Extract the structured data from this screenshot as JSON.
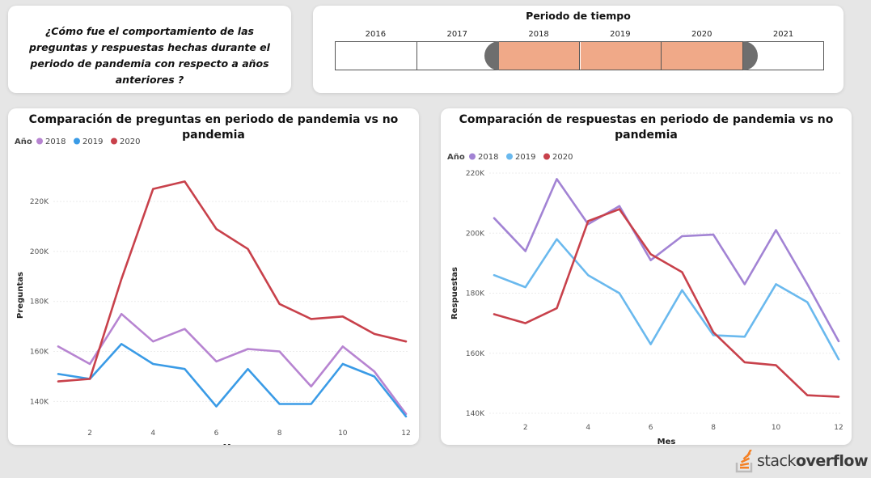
{
  "question": "¿Cómo fue el comportamiento de las preguntas y respuestas hechas durante el periodo de pandemia con respecto a años anteriores ?",
  "slicer": {
    "title": "Periodo de tiempo",
    "years": [
      "2016",
      "2017",
      "2018",
      "2019",
      "2020",
      "2021"
    ],
    "selected": [
      "2018",
      "2019",
      "2020"
    ],
    "selected_color": "#f0a988"
  },
  "logo": {
    "text_light": "stack",
    "text_bold": "overflow",
    "accent": "#f48024"
  },
  "chart_data": [
    {
      "type": "line",
      "title": "Comparación de preguntas en periodo de pandemia vs no pandemia",
      "legend_title": "Año",
      "legend_placement": "top-left",
      "xlabel": "Mes",
      "ylabel": "Preguntas",
      "x": [
        1,
        2,
        3,
        4,
        5,
        6,
        7,
        8,
        9,
        10,
        11,
        12
      ],
      "xticks": [
        2,
        4,
        6,
        8,
        10,
        12
      ],
      "ylim": [
        133000,
        232000
      ],
      "yticks": [
        140000,
        160000,
        180000,
        200000,
        220000
      ],
      "ytick_labels": [
        "140K",
        "160K",
        "180K",
        "200K",
        "220K"
      ],
      "grid": true,
      "series": [
        {
          "name": "2018",
          "color": "#b784d1",
          "values": [
            162000,
            155000,
            175000,
            164000,
            169000,
            156000,
            161000,
            160000,
            146000,
            162000,
            152000,
            135000
          ]
        },
        {
          "name": "2019",
          "color": "#3a9be6",
          "values": [
            151000,
            149000,
            163000,
            155000,
            153000,
            138000,
            153000,
            139000,
            139000,
            155000,
            150000,
            134000
          ]
        },
        {
          "name": "2020",
          "color": "#c8414b",
          "values": [
            148000,
            149000,
            189000,
            225000,
            228000,
            209000,
            201000,
            179000,
            173000,
            174000,
            167000,
            164000
          ]
        }
      ]
    },
    {
      "type": "line",
      "title": "Comparación de respuestas en periodo de pandemia vs no pandemia",
      "legend_title": "Año",
      "legend_placement": "top-left",
      "xlabel": "Mes",
      "ylabel": "Respuestas",
      "x": [
        1,
        2,
        3,
        4,
        5,
        6,
        7,
        8,
        9,
        10,
        11,
        12
      ],
      "xticks": [
        2,
        4,
        6,
        8,
        10,
        12
      ],
      "ylim": [
        140000,
        220000
      ],
      "yticks": [
        140000,
        160000,
        180000,
        200000,
        220000
      ],
      "ytick_labels": [
        "140K",
        "160K",
        "180K",
        "200K",
        "220K"
      ],
      "grid": true,
      "series": [
        {
          "name": "2018",
          "color": "#a283d4",
          "values": [
            205000,
            194000,
            218000,
            203000,
            209000,
            191000,
            199000,
            199500,
            183000,
            201000,
            183000,
            164000
          ]
        },
        {
          "name": "2019",
          "color": "#6ab9ee",
          "values": [
            186000,
            182000,
            198000,
            186000,
            180000,
            163000,
            181000,
            166000,
            165500,
            183000,
            177000,
            158000
          ]
        },
        {
          "name": "2020",
          "color": "#c8414b",
          "values": [
            173000,
            170000,
            175000,
            204000,
            208000,
            193000,
            187000,
            167000,
            157000,
            156000,
            146000,
            145500
          ]
        }
      ]
    }
  ]
}
